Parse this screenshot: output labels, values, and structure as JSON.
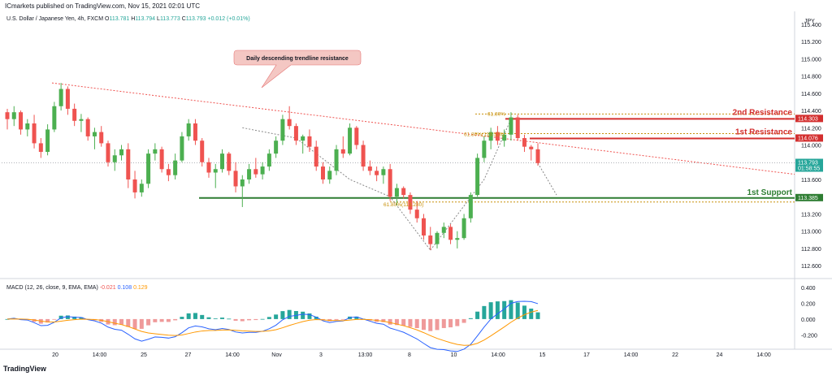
{
  "header": {
    "published": "ICmarkets published on TradingView.com, Nov 15, 2021 02:01 UTC"
  },
  "symbol": {
    "name": "U.S. Dollar / Japanese Yen, 4h, FXCM",
    "o_label": "O",
    "o": "113.781",
    "h_label": "H",
    "h": "113.794",
    "l_label": "L",
    "l": "113.773",
    "c_label": "C",
    "c": "113.793",
    "chg": "+0.012 (+0.01%)",
    "currency": "JPY"
  },
  "macd_header": {
    "label": "MACD (12, 26, close, 9, EMA, EMA)",
    "v1": "-0.021",
    "v2": "0.108",
    "v3": "0.129"
  },
  "footer": {
    "brand": "TradingView"
  },
  "colors": {
    "up": "#26a69a",
    "up_bar": "#4caf50",
    "down": "#ef5350",
    "resistance": "#d32f2f",
    "support": "#2e7d32",
    "fib": "#c8900a",
    "macd": "#2962ff",
    "signal": "#ff9800",
    "hist_up": "#26a69a",
    "hist_down": "#ef9a9a"
  },
  "annotations": {
    "callout": "Daily descending trendline resistance",
    "r2": "2nd Resistance",
    "r1": "1st Resistance",
    "s1": "1st Support",
    "fib_a": "61.80%",
    "fib_b": "61.80%(113.526)",
    "fib_c": "61.80%(113.280)"
  },
  "chart_data": {
    "type": "candlestick",
    "price_axis": {
      "ticks": [
        "115.400",
        "115.200",
        "115.000",
        "114.800",
        "114.600",
        "114.400",
        "114.200",
        "114.000",
        "113.600",
        "113.400",
        "113.200",
        "113.000",
        "112.800",
        "112.600"
      ],
      "range": [
        112.46,
        115.55
      ]
    },
    "price_tags": [
      {
        "value": 114.303,
        "text": "114.303",
        "kind": "resistance"
      },
      {
        "value": 114.076,
        "text": "114.076",
        "kind": "resistance"
      },
      {
        "value": 113.793,
        "text": "113.793",
        "sub": "01:58:55",
        "kind": "last"
      },
      {
        "value": 113.385,
        "text": "113.385",
        "kind": "support"
      }
    ],
    "levels": {
      "resistance_2": 114.303,
      "resistance_1": 114.076,
      "support_1": 113.385
    },
    "time_axis": [
      "20",
      "14:00",
      "25",
      "27",
      "14:00",
      "Nov",
      "3",
      "13:00",
      "8",
      "10",
      "14:00",
      "15",
      "17",
      "14:00",
      "22",
      "24",
      "14:00"
    ],
    "candles": [
      [
        114.38,
        114.42,
        114.18,
        114.3
      ],
      [
        114.3,
        114.45,
        114.22,
        114.38
      ],
      [
        114.38,
        114.4,
        114.12,
        114.18
      ],
      [
        114.18,
        114.3,
        114.1,
        114.25
      ],
      [
        114.25,
        114.35,
        113.96,
        114.02
      ],
      [
        114.02,
        114.08,
        113.85,
        113.92
      ],
      [
        113.92,
        114.24,
        113.88,
        114.18
      ],
      [
        114.18,
        114.5,
        114.15,
        114.45
      ],
      [
        114.45,
        114.72,
        114.4,
        114.65
      ],
      [
        114.65,
        114.68,
        114.35,
        114.42
      ],
      [
        114.42,
        114.48,
        114.22,
        114.28
      ],
      [
        114.28,
        114.36,
        114.15,
        114.3
      ],
      [
        114.3,
        114.32,
        114.05,
        114.1
      ],
      [
        114.1,
        114.2,
        113.95,
        114.15
      ],
      [
        114.15,
        114.22,
        113.98,
        114.02
      ],
      [
        114.02,
        114.05,
        113.75,
        113.8
      ],
      [
        113.8,
        113.95,
        113.7,
        113.88
      ],
      [
        113.88,
        114.0,
        113.82,
        113.95
      ],
      [
        113.95,
        114.02,
        113.5,
        113.6
      ],
      [
        113.6,
        113.7,
        113.38,
        113.45
      ],
      [
        113.45,
        113.6,
        113.4,
        113.55
      ],
      [
        113.55,
        113.95,
        113.5,
        113.9
      ],
      [
        113.9,
        114.02,
        113.82,
        113.95
      ],
      [
        113.95,
        113.98,
        113.68,
        113.72
      ],
      [
        113.72,
        113.78,
        113.58,
        113.65
      ],
      [
        113.65,
        113.9,
        113.6,
        113.82
      ],
      [
        113.82,
        114.15,
        113.8,
        114.1
      ],
      [
        114.1,
        114.3,
        114.05,
        114.25
      ],
      [
        114.25,
        114.3,
        114.0,
        114.05
      ],
      [
        114.05,
        114.08,
        113.75,
        113.8
      ],
      [
        113.8,
        113.85,
        113.62,
        113.68
      ],
      [
        113.68,
        113.78,
        113.5,
        113.72
      ],
      [
        113.72,
        113.95,
        113.68,
        113.9
      ],
      [
        113.9,
        113.92,
        113.65,
        113.7
      ],
      [
        113.7,
        113.8,
        113.45,
        113.52
      ],
      [
        113.52,
        113.65,
        113.28,
        113.6
      ],
      [
        113.6,
        113.78,
        113.55,
        113.72
      ],
      [
        113.72,
        113.85,
        113.62,
        113.66
      ],
      [
        113.66,
        113.8,
        113.6,
        113.75
      ],
      [
        113.75,
        113.95,
        113.7,
        113.9
      ],
      [
        113.9,
        114.1,
        113.85,
        114.05
      ],
      [
        114.05,
        114.35,
        114.0,
        114.3
      ],
      [
        114.3,
        114.45,
        114.18,
        114.22
      ],
      [
        114.22,
        114.25,
        114.0,
        114.05
      ],
      [
        114.05,
        114.12,
        113.9,
        114.1
      ],
      [
        114.1,
        114.18,
        113.92,
        113.98
      ],
      [
        113.98,
        114.05,
        113.7,
        113.75
      ],
      [
        113.75,
        113.8,
        113.55,
        113.6
      ],
      [
        113.6,
        113.75,
        113.55,
        113.7
      ],
      [
        113.7,
        114.0,
        113.65,
        113.95
      ],
      [
        113.95,
        114.1,
        113.85,
        113.9
      ],
      [
        113.9,
        114.25,
        113.88,
        114.2
      ],
      [
        114.2,
        114.22,
        113.95,
        114.0
      ],
      [
        114.0,
        114.05,
        113.7,
        113.75
      ],
      [
        113.75,
        113.82,
        113.65,
        113.7
      ],
      [
        113.7,
        113.75,
        113.58,
        113.65
      ],
      [
        113.65,
        113.75,
        113.55,
        113.72
      ],
      [
        113.72,
        113.78,
        113.35,
        113.4
      ],
      [
        113.4,
        113.55,
        113.3,
        113.5
      ],
      [
        113.5,
        113.52,
        113.38,
        113.42
      ],
      [
        113.42,
        113.45,
        113.2,
        113.25
      ],
      [
        113.25,
        113.35,
        113.1,
        113.15
      ],
      [
        113.15,
        113.2,
        112.9,
        112.95
      ],
      [
        112.95,
        113.05,
        112.78,
        112.85
      ],
      [
        112.85,
        113.0,
        112.8,
        112.98
      ],
      [
        112.98,
        113.1,
        112.92,
        113.05
      ],
      [
        113.05,
        113.08,
        112.85,
        112.9
      ],
      [
        112.9,
        113.0,
        112.8,
        112.92
      ],
      [
        112.92,
        113.2,
        112.9,
        113.15
      ],
      [
        113.15,
        113.45,
        113.1,
        113.42
      ],
      [
        113.42,
        113.9,
        113.4,
        113.85
      ],
      [
        113.85,
        114.1,
        113.8,
        114.05
      ],
      [
        114.05,
        114.2,
        113.95,
        114.15
      ],
      [
        114.15,
        114.22,
        114.0,
        114.05
      ],
      [
        114.05,
        114.18,
        113.98,
        114.12
      ],
      [
        114.12,
        114.38,
        114.05,
        114.32
      ],
      [
        114.32,
        114.35,
        114.05,
        114.08
      ],
      [
        114.08,
        114.12,
        113.92,
        113.98
      ],
      [
        113.98,
        114.0,
        113.82,
        113.95
      ],
      [
        113.95,
        114.02,
        113.76,
        113.79
      ]
    ]
  },
  "macd_data": {
    "axis_ticks": [
      "0.400",
      "0.200",
      "0.000",
      "-0.200"
    ],
    "range": [
      -0.36,
      0.44
    ]
  }
}
